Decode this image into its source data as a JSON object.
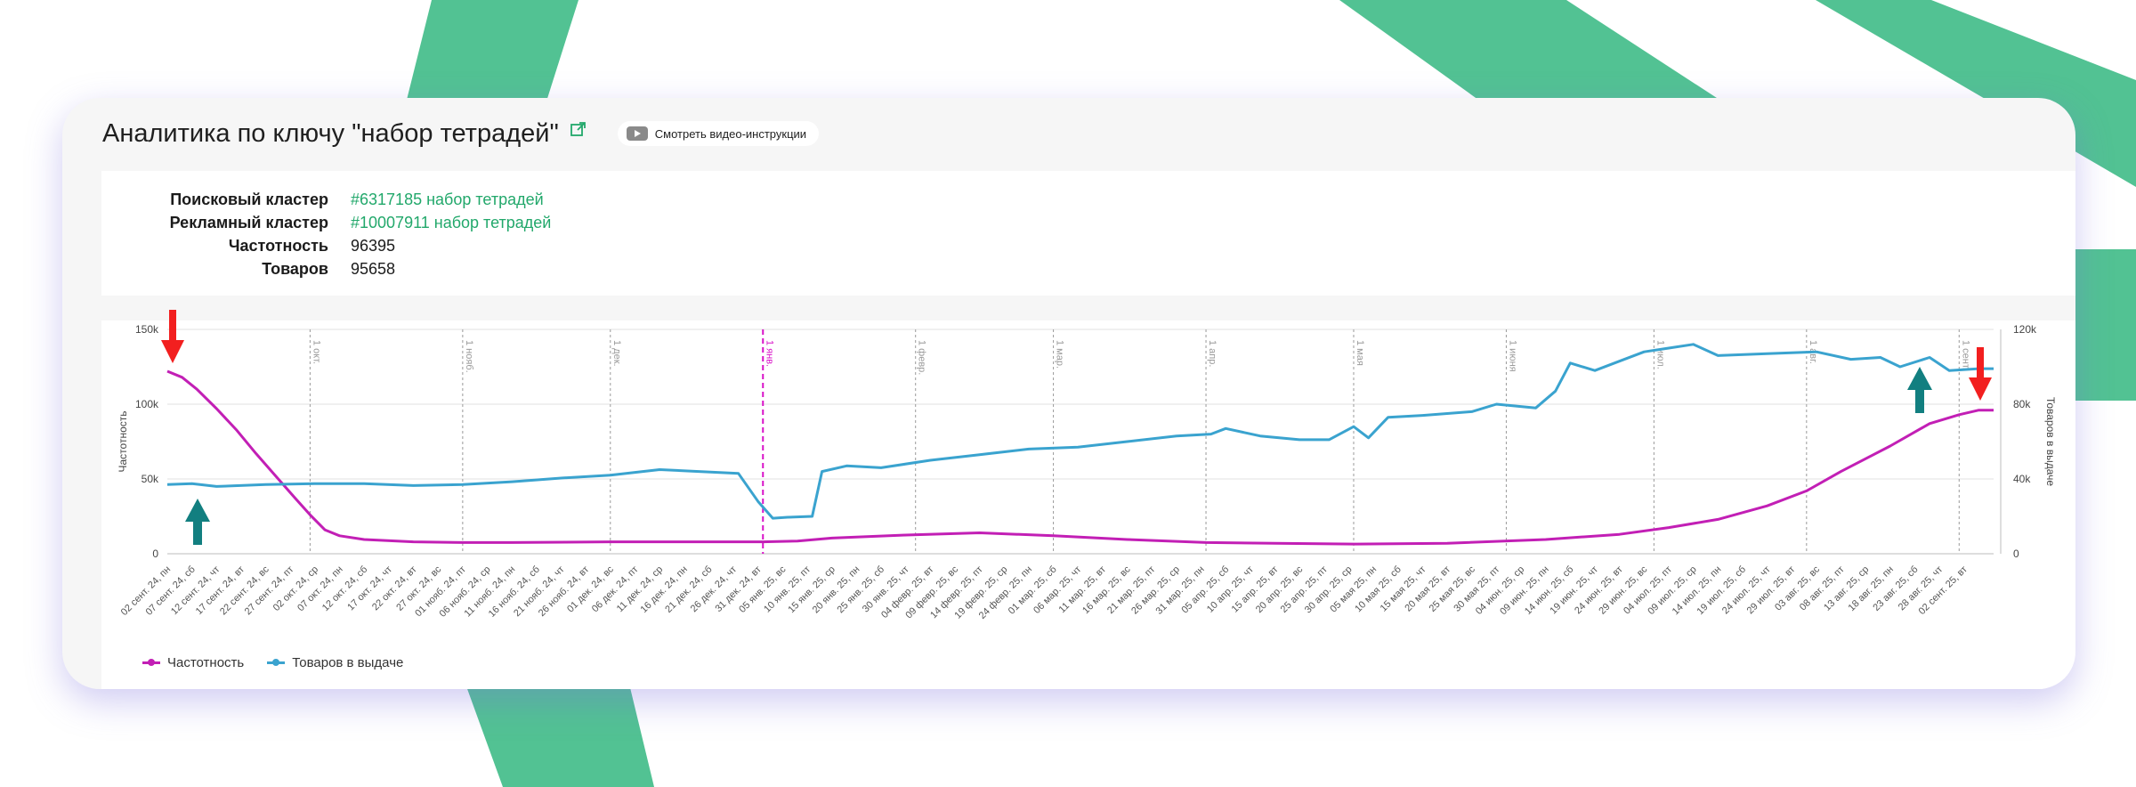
{
  "header": {
    "title": "Аналитика по ключу \"набор тетрадей\"",
    "video_button_label": "Смотреть видео-инструкции"
  },
  "info": {
    "search_cluster_label": "Поисковый кластер",
    "search_cluster_value": "#6317185 набор тетрадей",
    "ad_cluster_label": "Рекламный кластер",
    "ad_cluster_value": "#10007911 набор тетрадей",
    "frequency_label": "Частотность",
    "frequency_value": "96395",
    "products_label": "Товаров",
    "products_value": "95658"
  },
  "colors": {
    "frequency": "#c21fb5",
    "products": "#3aa3cf",
    "accent_green": "#22a86b",
    "arrow_red": "#f21f1f",
    "arrow_teal": "#127f80",
    "deco_green": "#52c293"
  },
  "legend": {
    "frequency": "Частотность",
    "products": "Товаров в выдаче"
  },
  "annotations": [
    "red-arrow-down",
    "teal-arrow-up",
    "red-arrow-down",
    "teal-arrow-up"
  ],
  "chart_data": {
    "type": "line",
    "ylabel": "Частотность",
    "y2label": "Товаров в выдаче",
    "ylim": [
      0,
      150000
    ],
    "y2lim": [
      0,
      120000
    ],
    "yticks": [
      "0",
      "50k",
      "100k",
      "150k"
    ],
    "y2ticks": [
      "0",
      "40k",
      "80k",
      "120k"
    ],
    "month_markers": [
      {
        "label": "1 окт.",
        "day": 29,
        "highlight": false
      },
      {
        "label": "1 нояб.",
        "day": 60,
        "highlight": false
      },
      {
        "label": "1 дек.",
        "day": 90,
        "highlight": false
      },
      {
        "label": "1 янв.",
        "day": 121,
        "highlight": true
      },
      {
        "label": "1 февр.",
        "day": 152,
        "highlight": false
      },
      {
        "label": "1 мар.",
        "day": 180,
        "highlight": false
      },
      {
        "label": "1 апр.",
        "day": 211,
        "highlight": false
      },
      {
        "label": "1 мая",
        "day": 241,
        "highlight": false
      },
      {
        "label": "1 июня",
        "day": 272,
        "highlight": false
      },
      {
        "label": "1 июл.",
        "day": 302,
        "highlight": false
      },
      {
        "label": "1 авг.",
        "day": 333,
        "highlight": false
      },
      {
        "label": "1 сент.",
        "day": 364,
        "highlight": false
      }
    ],
    "x_tick_labels": [
      "02 сент. 24, пн",
      "07 сент. 24, сб",
      "12 сент. 24, чт",
      "17 сент. 24, вт",
      "22 сент. 24, вс",
      "27 сент. 24, пт",
      "02 окт. 24, ср",
      "07 окт. 24, пн",
      "12 окт. 24, сб",
      "17 окт. 24, чт",
      "22 окт. 24, вт",
      "27 окт. 24, вс",
      "01 нояб. 24, пт",
      "06 нояб. 24, ср",
      "11 нояб. 24, пн",
      "16 нояб. 24, сб",
      "21 нояб. 24, чт",
      "26 нояб. 24, вт",
      "01 дек. 24, вс",
      "06 дек. 24, пт",
      "11 дек. 24, ср",
      "16 дек. 24, пн",
      "21 дек. 24, сб",
      "26 дек. 24, чт",
      "31 дек. 24, вт",
      "05 янв. 25, вс",
      "10 янв. 25, пт",
      "15 янв. 25, ср",
      "20 янв. 25, пн",
      "25 янв. 25, сб",
      "30 янв. 25, чт",
      "04 февр. 25, вт",
      "09 февр. 25, вс",
      "14 февр. 25, пт",
      "19 февр. 25, ср",
      "24 февр. 25, пн",
      "01 мар. 25, сб",
      "06 мар. 25, чт",
      "11 мар. 25, вт",
      "16 мар. 25, вс",
      "21 мар. 25, пт",
      "26 мар. 25, ср",
      "31 мар. 25, пн",
      "05 апр. 25, сб",
      "10 апр. 25, чт",
      "15 апр. 25, вт",
      "20 апр. 25, вс",
      "25 апр. 25, пт",
      "30 апр. 25, ср",
      "05 мая 25, пн",
      "10 мая 25, сб",
      "15 мая 25, чт",
      "20 мая 25, вт",
      "25 мая 25, вс",
      "30 мая 25, пт",
      "04 июн. 25, ср",
      "09 июн. 25, пн",
      "14 июн. 25, сб",
      "19 июн. 25, чт",
      "24 июн. 25, вт",
      "29 июн. 25, вс",
      "04 июл. 25, пт",
      "09 июл. 25, ср",
      "14 июл. 25, пн",
      "19 июл. 25, сб",
      "24 июл. 25, чт",
      "29 июл. 25, вт",
      "03 авг. 25, вс",
      "08 авг. 25, пт",
      "13 авг. 25, ср",
      "18 авг. 25, пн",
      "23 авг. 25, сб",
      "28 авг. 25, чт",
      "02 сент. 25, вт"
    ],
    "series": [
      {
        "name": "Частотность",
        "axis": "left",
        "points": [
          [
            0,
            122000
          ],
          [
            3,
            118000
          ],
          [
            6,
            110000
          ],
          [
            10,
            97000
          ],
          [
            14,
            83000
          ],
          [
            18,
            67000
          ],
          [
            22,
            52000
          ],
          [
            26,
            37000
          ],
          [
            29,
            26000
          ],
          [
            32,
            16000
          ],
          [
            35,
            12000
          ],
          [
            40,
            9500
          ],
          [
            50,
            8000
          ],
          [
            60,
            7500
          ],
          [
            70,
            7500
          ],
          [
            90,
            8000
          ],
          [
            110,
            8000
          ],
          [
            121,
            8000
          ],
          [
            128,
            8500
          ],
          [
            135,
            10500
          ],
          [
            150,
            12500
          ],
          [
            165,
            14000
          ],
          [
            180,
            12000
          ],
          [
            195,
            9500
          ],
          [
            211,
            7500
          ],
          [
            225,
            7000
          ],
          [
            241,
            6500
          ],
          [
            260,
            7000
          ],
          [
            280,
            9500
          ],
          [
            295,
            13000
          ],
          [
            305,
            17500
          ],
          [
            315,
            23000
          ],
          [
            325,
            32000
          ],
          [
            333,
            42000
          ],
          [
            340,
            55000
          ],
          [
            350,
            72000
          ],
          [
            358,
            87000
          ],
          [
            364,
            93000
          ],
          [
            368,
            96000
          ],
          [
            371,
            96000
          ]
        ]
      },
      {
        "name": "Товаров в выдаче",
        "axis": "right",
        "points": [
          [
            0,
            37000
          ],
          [
            5,
            37500
          ],
          [
            10,
            36000
          ],
          [
            20,
            37000
          ],
          [
            30,
            37500
          ],
          [
            40,
            37500
          ],
          [
            50,
            36500
          ],
          [
            60,
            37000
          ],
          [
            70,
            38500
          ],
          [
            80,
            40500
          ],
          [
            90,
            42000
          ],
          [
            100,
            45000
          ],
          [
            108,
            44000
          ],
          [
            116,
            43000
          ],
          [
            120,
            28000
          ],
          [
            123,
            19000
          ],
          [
            126,
            19500
          ],
          [
            131,
            20000
          ],
          [
            133,
            44000
          ],
          [
            138,
            47000
          ],
          [
            145,
            46000
          ],
          [
            155,
            50000
          ],
          [
            165,
            53000
          ],
          [
            175,
            56000
          ],
          [
            185,
            57000
          ],
          [
            195,
            60000
          ],
          [
            205,
            63000
          ],
          [
            212,
            64000
          ],
          [
            215,
            67000
          ],
          [
            222,
            63000
          ],
          [
            230,
            61000
          ],
          [
            236,
            61000
          ],
          [
            241,
            68000
          ],
          [
            244,
            62000
          ],
          [
            248,
            73000
          ],
          [
            255,
            74000
          ],
          [
            265,
            76000
          ],
          [
            270,
            80000
          ],
          [
            278,
            78000
          ],
          [
            282,
            87000
          ],
          [
            285,
            102000
          ],
          [
            290,
            98000
          ],
          [
            295,
            103000
          ],
          [
            300,
            108000
          ],
          [
            305,
            110000
          ],
          [
            310,
            112000
          ],
          [
            315,
            106000
          ],
          [
            325,
            107000
          ],
          [
            335,
            108000
          ],
          [
            342,
            104000
          ],
          [
            348,
            105000
          ],
          [
            352,
            100000
          ],
          [
            358,
            105000
          ],
          [
            362,
            98000
          ],
          [
            368,
            99000
          ],
          [
            371,
            99000
          ]
        ]
      }
    ]
  }
}
